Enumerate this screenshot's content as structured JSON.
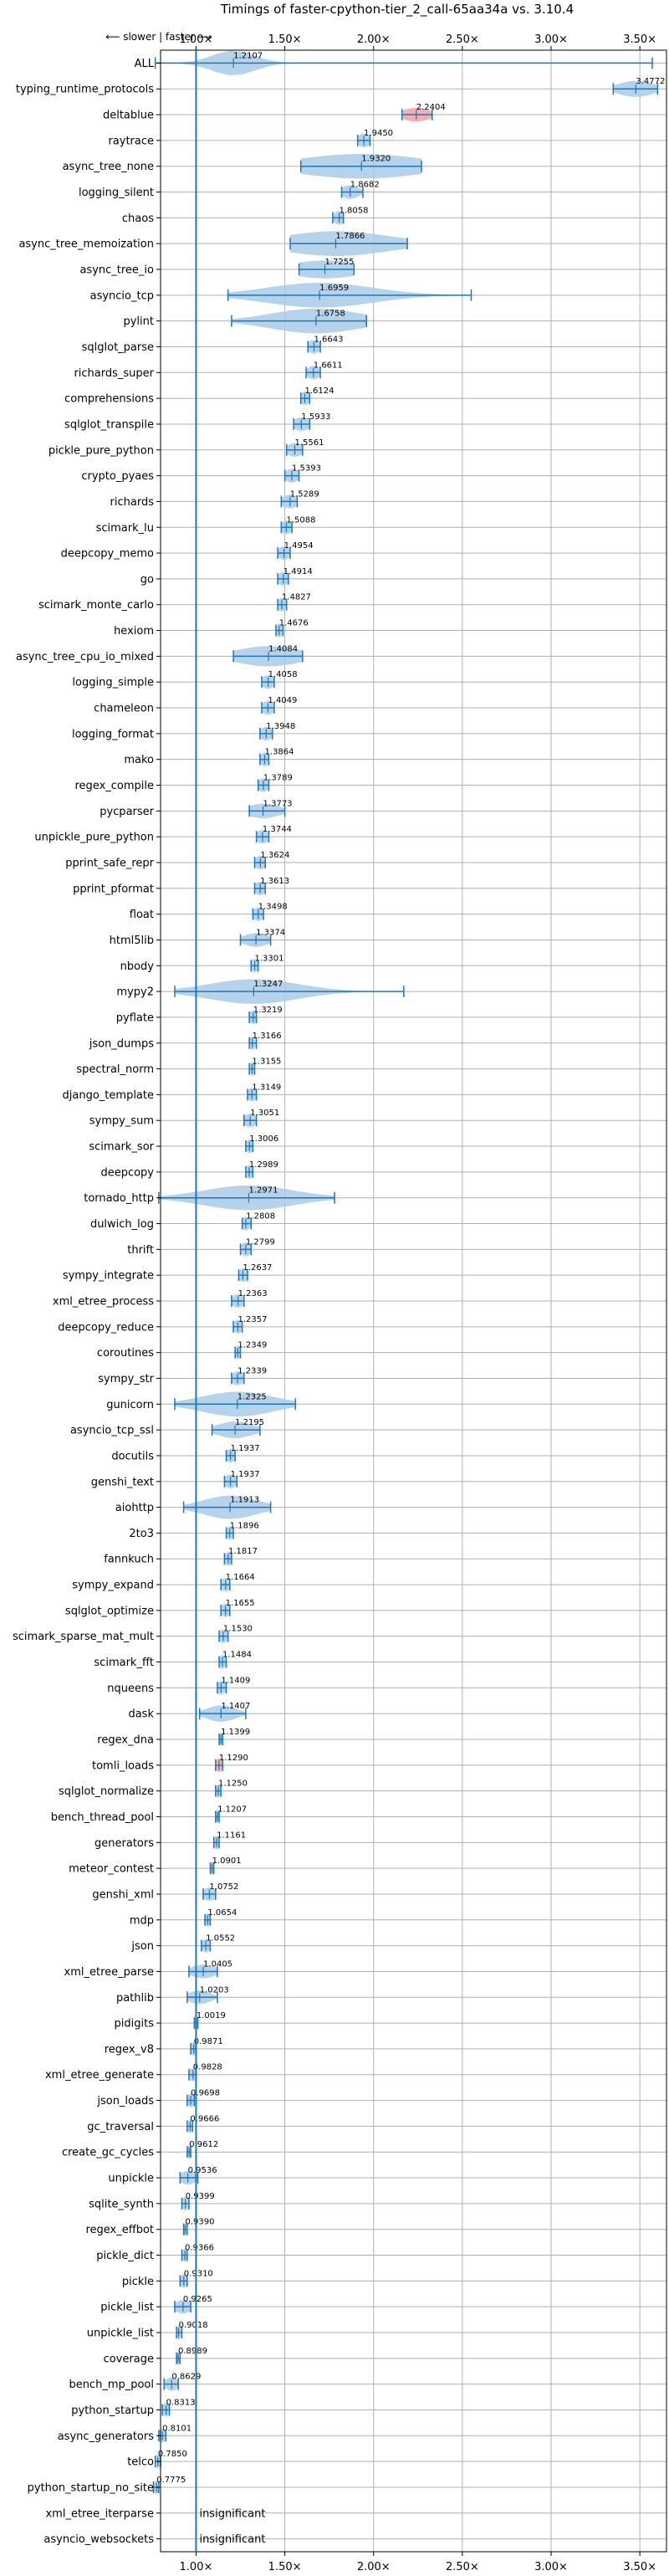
{
  "chart_data": {
    "type": "violin",
    "title": "Timings of faster-cpython-tier_2_call-65aa34a vs. 3.10.4",
    "direction_hint": "⟵ slower | faster ⟶",
    "xticks": [
      "1.00×",
      "1.50×",
      "2.00×",
      "2.50×",
      "3.00×",
      "3.50×"
    ],
    "xtick_values": [
      1.0,
      1.5,
      2.0,
      2.5,
      3.0,
      3.5
    ],
    "xlim": [
      0.8,
      3.65
    ],
    "reference_line": 1.0,
    "grid": true,
    "colors": {
      "violin": "#a9cbe8",
      "violin_slower": "#f4a0a0",
      "line": "#1f77b4",
      "grid": "#b0b0b0"
    },
    "benchmarks": [
      {
        "name": "ALL",
        "value": 1.2107,
        "label": "1.2107",
        "min": 0.77,
        "max": 3.57,
        "spread": 0.12
      },
      {
        "name": "typing_runtime_protocols",
        "value": 3.4772,
        "label": "3.4772",
        "min": 3.35,
        "max": 3.6,
        "spread": 0.1
      },
      {
        "name": "deltablue",
        "value": 2.2404,
        "label": "2.2404",
        "min": 2.16,
        "max": 2.33,
        "spread": 0.08,
        "color": "red"
      },
      {
        "name": "raytrace",
        "value": 1.945,
        "label": "1.9450",
        "min": 1.91,
        "max": 1.98,
        "spread": 0.035
      },
      {
        "name": "async_tree_none",
        "value": 1.932,
        "label": "1.9320",
        "min": 1.59,
        "max": 2.27,
        "spread": 0.35
      },
      {
        "name": "logging_silent",
        "value": 1.8682,
        "label": "1.8682",
        "min": 1.82,
        "max": 1.94,
        "spread": 0.05
      },
      {
        "name": "chaos",
        "value": 1.8058,
        "label": "1.8058",
        "min": 1.77,
        "max": 1.83,
        "spread": 0.03
      },
      {
        "name": "async_tree_memoization",
        "value": 1.7866,
        "label": "1.7866",
        "min": 1.53,
        "max": 2.19,
        "spread": 0.3
      },
      {
        "name": "async_tree_io",
        "value": 1.7255,
        "label": "1.7255",
        "min": 1.58,
        "max": 1.89,
        "spread": 0.2
      },
      {
        "name": "asyncio_tcp",
        "value": 1.6959,
        "label": "1.6959",
        "min": 1.18,
        "max": 2.55,
        "spread": 0.3
      },
      {
        "name": "pylint",
        "value": 1.6758,
        "label": "1.6758",
        "min": 1.2,
        "max": 1.96,
        "spread": 0.25
      },
      {
        "name": "sqlglot_parse",
        "value": 1.6643,
        "label": "1.6643",
        "min": 1.63,
        "max": 1.7,
        "spread": 0.035
      },
      {
        "name": "richards_super",
        "value": 1.6611,
        "label": "1.6611",
        "min": 1.62,
        "max": 1.7,
        "spread": 0.035
      },
      {
        "name": "comprehensions",
        "value": 1.6124,
        "label": "1.6124",
        "min": 1.59,
        "max": 1.64,
        "spread": 0.025
      },
      {
        "name": "sqlglot_transpile",
        "value": 1.5933,
        "label": "1.5933",
        "min": 1.55,
        "max": 1.64,
        "spread": 0.045
      },
      {
        "name": "pickle_pure_python",
        "value": 1.5561,
        "label": "1.5561",
        "min": 1.51,
        "max": 1.6,
        "spread": 0.045
      },
      {
        "name": "crypto_pyaes",
        "value": 1.5393,
        "label": "1.5393",
        "min": 1.5,
        "max": 1.58,
        "spread": 0.04
      },
      {
        "name": "richards",
        "value": 1.5289,
        "label": "1.5289",
        "min": 1.48,
        "max": 1.57,
        "spread": 0.045
      },
      {
        "name": "scimark_lu",
        "value": 1.5088,
        "label": "1.5088",
        "min": 1.48,
        "max": 1.54,
        "spread": 0.03
      },
      {
        "name": "deepcopy_memo",
        "value": 1.4954,
        "label": "1.4954",
        "min": 1.46,
        "max": 1.53,
        "spread": 0.035
      },
      {
        "name": "go",
        "value": 1.4914,
        "label": "1.4914",
        "min": 1.46,
        "max": 1.52,
        "spread": 0.03
      },
      {
        "name": "scimark_monte_carlo",
        "value": 1.4827,
        "label": "1.4827",
        "min": 1.46,
        "max": 1.51,
        "spread": 0.025
      },
      {
        "name": "hexiom",
        "value": 1.4676,
        "label": "1.4676",
        "min": 1.45,
        "max": 1.49,
        "spread": 0.02
      },
      {
        "name": "async_tree_cpu_io_mixed",
        "value": 1.4084,
        "label": "1.4084",
        "min": 1.21,
        "max": 1.6,
        "spread": 0.18
      },
      {
        "name": "logging_simple",
        "value": 1.4058,
        "label": "1.4058",
        "min": 1.37,
        "max": 1.44,
        "spread": 0.035
      },
      {
        "name": "chameleon",
        "value": 1.4049,
        "label": "1.4049",
        "min": 1.37,
        "max": 1.44,
        "spread": 0.035
      },
      {
        "name": "logging_format",
        "value": 1.3948,
        "label": "1.3948",
        "min": 1.36,
        "max": 1.43,
        "spread": 0.035
      },
      {
        "name": "mako",
        "value": 1.3864,
        "label": "1.3864",
        "min": 1.36,
        "max": 1.41,
        "spread": 0.025
      },
      {
        "name": "regex_compile",
        "value": 1.3789,
        "label": "1.3789",
        "min": 1.35,
        "max": 1.41,
        "spread": 0.03
      },
      {
        "name": "pycparser",
        "value": 1.3773,
        "label": "1.3773",
        "min": 1.3,
        "max": 1.5,
        "spread": 0.09
      },
      {
        "name": "unpickle_pure_python",
        "value": 1.3744,
        "label": "1.3744",
        "min": 1.34,
        "max": 1.41,
        "spread": 0.035
      },
      {
        "name": "pprint_safe_repr",
        "value": 1.3624,
        "label": "1.3624",
        "min": 1.33,
        "max": 1.39,
        "spread": 0.03
      },
      {
        "name": "pprint_pformat",
        "value": 1.3613,
        "label": "1.3613",
        "min": 1.33,
        "max": 1.39,
        "spread": 0.03
      },
      {
        "name": "float",
        "value": 1.3498,
        "label": "1.3498",
        "min": 1.32,
        "max": 1.38,
        "spread": 0.03
      },
      {
        "name": "html5lib",
        "value": 1.3374,
        "label": "1.3374",
        "min": 1.25,
        "max": 1.42,
        "spread": 0.07
      },
      {
        "name": "nbody",
        "value": 1.3301,
        "label": "1.3301",
        "min": 1.31,
        "max": 1.35,
        "spread": 0.02
      },
      {
        "name": "mypy2",
        "value": 1.3247,
        "label": "1.3247",
        "min": 0.88,
        "max": 2.17,
        "spread": 0.25
      },
      {
        "name": "pyflate",
        "value": 1.3219,
        "label": "1.3219",
        "min": 1.3,
        "max": 1.34,
        "spread": 0.02
      },
      {
        "name": "json_dumps",
        "value": 1.3166,
        "label": "1.3166",
        "min": 1.3,
        "max": 1.34,
        "spread": 0.02
      },
      {
        "name": "spectral_norm",
        "value": 1.3155,
        "label": "1.3155",
        "min": 1.3,
        "max": 1.33,
        "spread": 0.015
      },
      {
        "name": "django_template",
        "value": 1.3149,
        "label": "1.3149",
        "min": 1.29,
        "max": 1.34,
        "spread": 0.025
      },
      {
        "name": "sympy_sum",
        "value": 1.3051,
        "label": "1.3051",
        "min": 1.27,
        "max": 1.34,
        "spread": 0.035
      },
      {
        "name": "scimark_sor",
        "value": 1.3006,
        "label": "1.3006",
        "min": 1.28,
        "max": 1.32,
        "spread": 0.02
      },
      {
        "name": "deepcopy",
        "value": 1.2989,
        "label": "1.2989",
        "min": 1.28,
        "max": 1.32,
        "spread": 0.02
      },
      {
        "name": "tornado_http",
        "value": 1.2971,
        "label": "1.2971",
        "min": 0.79,
        "max": 1.78,
        "spread": 0.25
      },
      {
        "name": "dulwich_log",
        "value": 1.2808,
        "label": "1.2808",
        "min": 1.26,
        "max": 1.31,
        "spread": 0.025
      },
      {
        "name": "thrift",
        "value": 1.2799,
        "label": "1.2799",
        "min": 1.25,
        "max": 1.31,
        "spread": 0.03
      },
      {
        "name": "sympy_integrate",
        "value": 1.2637,
        "label": "1.2637",
        "min": 1.24,
        "max": 1.29,
        "spread": 0.025
      },
      {
        "name": "xml_etree_process",
        "value": 1.2363,
        "label": "1.2363",
        "min": 1.2,
        "max": 1.27,
        "spread": 0.035
      },
      {
        "name": "deepcopy_reduce",
        "value": 1.2357,
        "label": "1.2357",
        "min": 1.21,
        "max": 1.26,
        "spread": 0.025
      },
      {
        "name": "coroutines",
        "value": 1.2349,
        "label": "1.2349",
        "min": 1.22,
        "max": 1.25,
        "spread": 0.015
      },
      {
        "name": "sympy_str",
        "value": 1.2339,
        "label": "1.2339",
        "min": 1.2,
        "max": 1.27,
        "spread": 0.035
      },
      {
        "name": "gunicorn",
        "value": 1.2325,
        "label": "1.2325",
        "min": 0.88,
        "max": 1.56,
        "spread": 0.2
      },
      {
        "name": "asyncio_tcp_ssl",
        "value": 1.2195,
        "label": "1.2195",
        "min": 1.09,
        "max": 1.36,
        "spread": 0.1
      },
      {
        "name": "docutils",
        "value": 1.1937,
        "label": "1.1937",
        "min": 1.17,
        "max": 1.22,
        "spread": 0.025
      },
      {
        "name": "genshi_text",
        "value": 1.1937,
        "label": "1.1937",
        "min": 1.16,
        "max": 1.23,
        "spread": 0.035
      },
      {
        "name": "aiohttp",
        "value": 1.1913,
        "label": "1.1913",
        "min": 0.93,
        "max": 1.42,
        "spread": 0.15
      },
      {
        "name": "2to3",
        "value": 1.1896,
        "label": "1.1896",
        "min": 1.17,
        "max": 1.21,
        "spread": 0.02
      },
      {
        "name": "fannkuch",
        "value": 1.1817,
        "label": "1.1817",
        "min": 1.16,
        "max": 1.2,
        "spread": 0.02
      },
      {
        "name": "sympy_expand",
        "value": 1.1664,
        "label": "1.1664",
        "min": 1.14,
        "max": 1.19,
        "spread": 0.025
      },
      {
        "name": "sqlglot_optimize",
        "value": 1.1655,
        "label": "1.1655",
        "min": 1.14,
        "max": 1.19,
        "spread": 0.025
      },
      {
        "name": "scimark_sparse_mat_mult",
        "value": 1.153,
        "label": "1.1530",
        "min": 1.13,
        "max": 1.18,
        "spread": 0.025
      },
      {
        "name": "scimark_fft",
        "value": 1.1484,
        "label": "1.1484",
        "min": 1.13,
        "max": 1.17,
        "spread": 0.02
      },
      {
        "name": "nqueens",
        "value": 1.1409,
        "label": "1.1409",
        "min": 1.12,
        "max": 1.17,
        "spread": 0.025
      },
      {
        "name": "dask",
        "value": 1.1407,
        "label": "1.1407",
        "min": 1.02,
        "max": 1.28,
        "spread": 0.08
      },
      {
        "name": "regex_dna",
        "value": 1.1399,
        "label": "1.1399",
        "min": 1.13,
        "max": 1.15,
        "spread": 0.01
      },
      {
        "name": "tomli_loads",
        "value": 1.129,
        "label": "1.1290",
        "min": 1.11,
        "max": 1.15,
        "spread": 0.02,
        "color": "red"
      },
      {
        "name": "sqlglot_normalize",
        "value": 1.125,
        "label": "1.1250",
        "min": 1.11,
        "max": 1.14,
        "spread": 0.015
      },
      {
        "name": "bench_thread_pool",
        "value": 1.1207,
        "label": "1.1207",
        "min": 1.11,
        "max": 1.13,
        "spread": 0.01
      },
      {
        "name": "generators",
        "value": 1.1161,
        "label": "1.1161",
        "min": 1.1,
        "max": 1.13,
        "spread": 0.015
      },
      {
        "name": "meteor_contest",
        "value": 1.0901,
        "label": "1.0901",
        "min": 1.08,
        "max": 1.1,
        "spread": 0.01
      },
      {
        "name": "genshi_xml",
        "value": 1.0752,
        "label": "1.0752",
        "min": 1.04,
        "max": 1.11,
        "spread": 0.035
      },
      {
        "name": "mdp",
        "value": 1.0654,
        "label": "1.0654",
        "min": 1.05,
        "max": 1.08,
        "spread": 0.015
      },
      {
        "name": "json",
        "value": 1.0552,
        "label": "1.0552",
        "min": 1.03,
        "max": 1.08,
        "spread": 0.025
      },
      {
        "name": "xml_etree_parse",
        "value": 1.0405,
        "label": "1.0405",
        "min": 0.96,
        "max": 1.12,
        "spread": 0.07
      },
      {
        "name": "pathlib",
        "value": 1.0203,
        "label": "1.0203",
        "min": 0.95,
        "max": 1.12,
        "spread": 0.06
      },
      {
        "name": "pidigits",
        "value": 1.0019,
        "label": "1.0019",
        "min": 0.99,
        "max": 1.01,
        "spread": 0.01
      },
      {
        "name": "regex_v8",
        "value": 0.9871,
        "label": "0.9871",
        "min": 0.97,
        "max": 1.0,
        "spread": 0.015
      },
      {
        "name": "xml_etree_generate",
        "value": 0.9828,
        "label": "0.9828",
        "min": 0.96,
        "max": 1.0,
        "spread": 0.02
      },
      {
        "name": "json_loads",
        "value": 0.9698,
        "label": "0.9698",
        "min": 0.95,
        "max": 0.99,
        "spread": 0.02
      },
      {
        "name": "gc_traversal",
        "value": 0.9666,
        "label": "0.9666",
        "min": 0.95,
        "max": 0.98,
        "spread": 0.015
      },
      {
        "name": "create_gc_cycles",
        "value": 0.9612,
        "label": "0.9612",
        "min": 0.95,
        "max": 0.97,
        "spread": 0.01
      },
      {
        "name": "unpickle",
        "value": 0.9536,
        "label": "0.9536",
        "min": 0.91,
        "max": 1.01,
        "spread": 0.045
      },
      {
        "name": "sqlite_synth",
        "value": 0.9399,
        "label": "0.9399",
        "min": 0.92,
        "max": 0.96,
        "spread": 0.02
      },
      {
        "name": "regex_effbot",
        "value": 0.939,
        "label": "0.9390",
        "min": 0.93,
        "max": 0.95,
        "spread": 0.01
      },
      {
        "name": "pickle_dict",
        "value": 0.9366,
        "label": "0.9366",
        "min": 0.92,
        "max": 0.95,
        "spread": 0.015
      },
      {
        "name": "pickle",
        "value": 0.931,
        "label": "0.9310",
        "min": 0.91,
        "max": 0.95,
        "spread": 0.02
      },
      {
        "name": "pickle_list",
        "value": 0.9265,
        "label": "0.9265",
        "min": 0.88,
        "max": 0.97,
        "spread": 0.045
      },
      {
        "name": "unpickle_list",
        "value": 0.9018,
        "label": "0.9018",
        "min": 0.89,
        "max": 0.92,
        "spread": 0.015
      },
      {
        "name": "coverage",
        "value": 0.8989,
        "label": "0.8989",
        "min": 0.89,
        "max": 0.91,
        "spread": 0.01
      },
      {
        "name": "bench_mp_pool",
        "value": 0.8629,
        "label": "0.8629",
        "min": 0.82,
        "max": 0.9,
        "spread": 0.035
      },
      {
        "name": "python_startup",
        "value": 0.8313,
        "label": "0.8313",
        "min": 0.81,
        "max": 0.85,
        "spread": 0.02
      },
      {
        "name": "async_generators",
        "value": 0.8101,
        "label": "0.8101",
        "min": 0.79,
        "max": 0.83,
        "spread": 0.02
      },
      {
        "name": "telco",
        "value": 0.785,
        "label": "0.7850",
        "min": 0.77,
        "max": 0.8,
        "spread": 0.015
      },
      {
        "name": "python_startup_no_site",
        "value": 0.7775,
        "label": "0.7775",
        "min": 0.76,
        "max": 0.79,
        "spread": 0.015
      },
      {
        "name": "xml_etree_iterparse",
        "value": null,
        "label": "insignificant"
      },
      {
        "name": "asyncio_websockets",
        "value": null,
        "label": "insignificant"
      }
    ]
  }
}
